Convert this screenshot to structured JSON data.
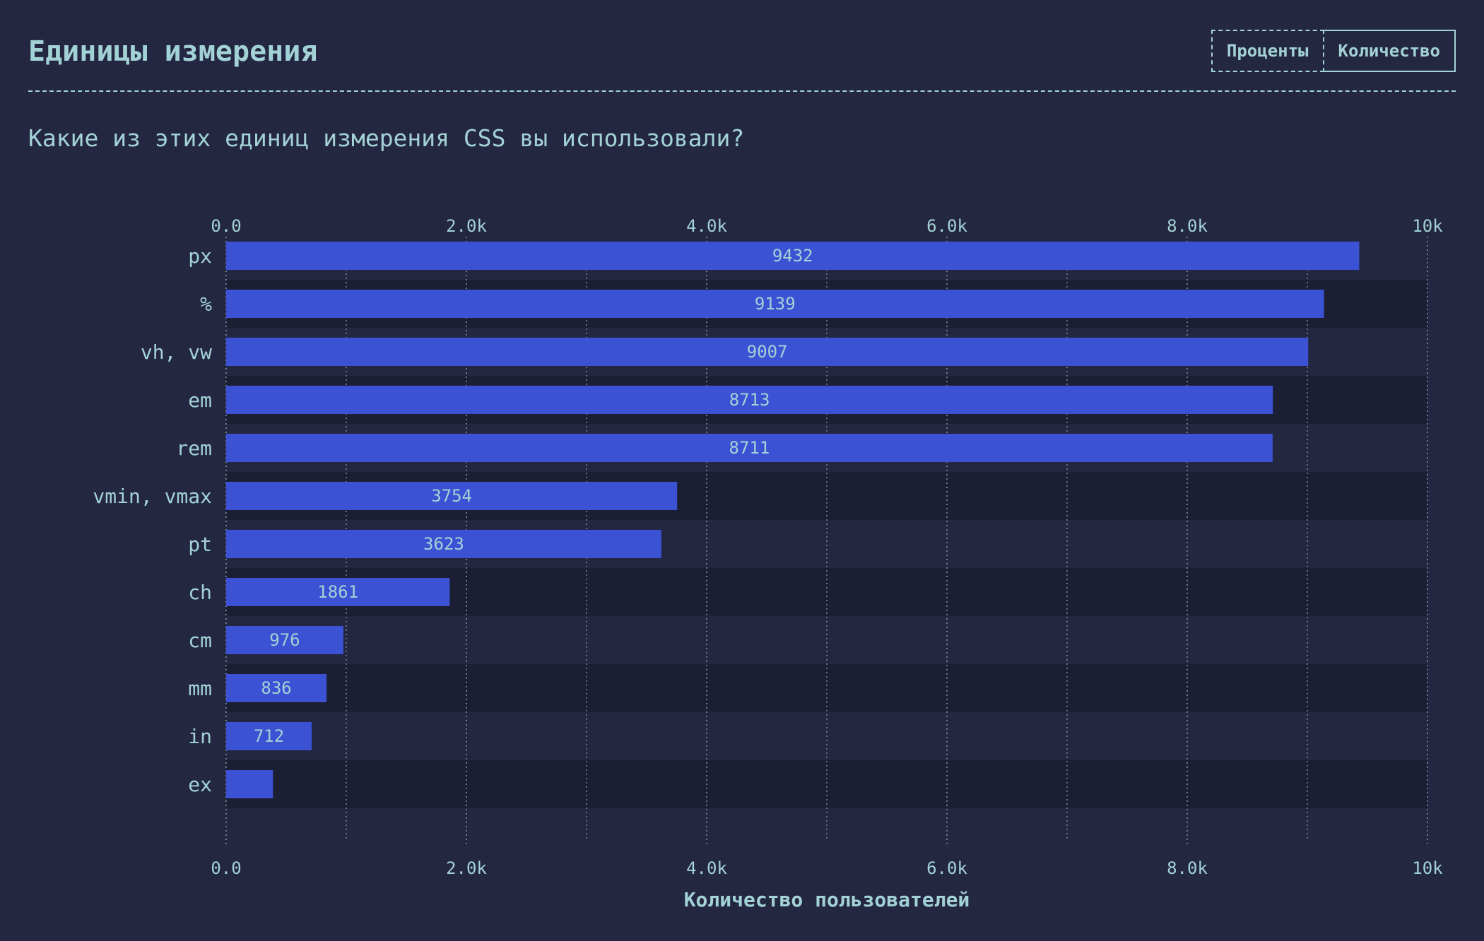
{
  "header": {
    "title": "Единицы измерения",
    "toggle_percent": "Проценты",
    "toggle_count": "Количество"
  },
  "question": "Какие из этих единиц измерения CSS вы использовали?",
  "colors": {
    "background": "#232742",
    "bar": "#3b52d4",
    "text": "#a3d2d6",
    "row_alt": "#1c1f33"
  },
  "chart_data": {
    "type": "bar",
    "orientation": "horizontal",
    "categories": [
      "px",
      "%",
      "vh, vw",
      "em",
      "rem",
      "vmin, vmax",
      "pt",
      "ch",
      "cm",
      "mm",
      "in",
      "ex"
    ],
    "values": [
      9432,
      9139,
      9007,
      8713,
      8711,
      3754,
      3623,
      1861,
      976,
      836,
      712,
      390
    ],
    "value_labels": [
      "9432",
      "9139",
      "9007",
      "8713",
      "8711",
      "3754",
      "3623",
      "1861",
      "976",
      "836",
      "712",
      ""
    ],
    "xlabel": "Количество пользователей",
    "xlim": [
      0,
      10000
    ],
    "ticks": [
      0,
      2000,
      4000,
      6000,
      8000,
      10000
    ],
    "tick_labels": [
      "0.0",
      "2.0k",
      "4.0k",
      "6.0k",
      "8.0k",
      "10k"
    ],
    "minor_gridlines": [
      1000,
      3000,
      5000,
      7000,
      9000
    ]
  }
}
